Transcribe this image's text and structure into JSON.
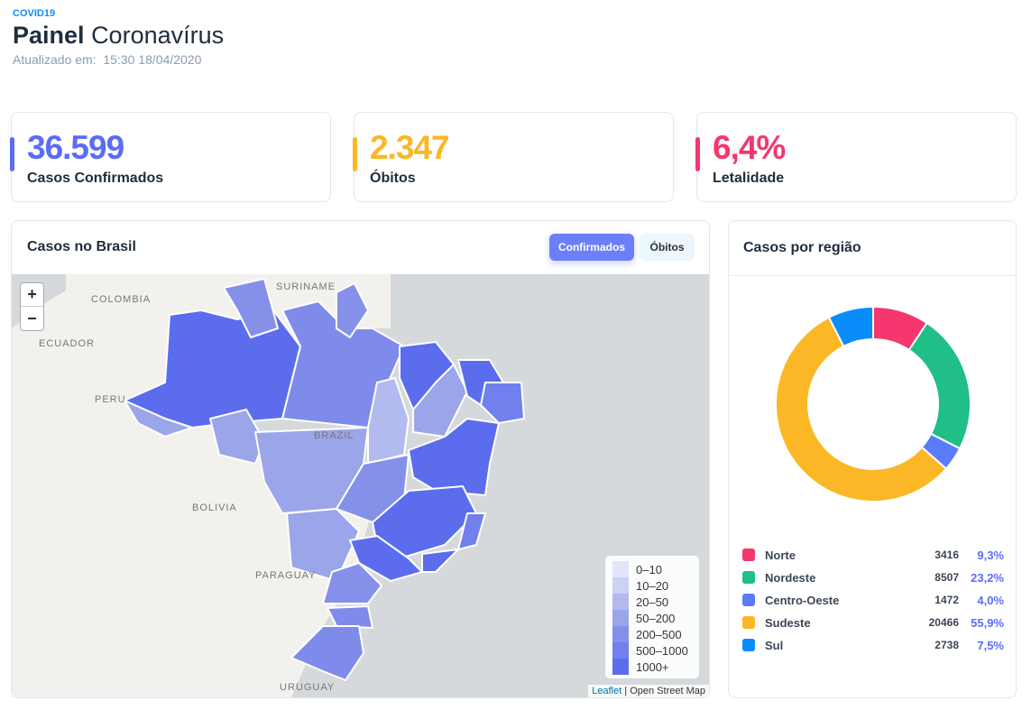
{
  "header": {
    "kicker": "COVID19",
    "title_bold": "Painel",
    "title_rest": "Coronavírus",
    "updated_label": "Atualizado em:",
    "updated_value": "15:30 18/04/2020"
  },
  "stats": [
    {
      "value": "36.599",
      "label": "Casos Confirmados",
      "color": "#5b6cfa"
    },
    {
      "value": "2.347",
      "label": "Óbitos",
      "color": "#fbb726"
    },
    {
      "value": "6,4%",
      "label": "Letalidade",
      "color": "#f5376e"
    }
  ],
  "map_panel": {
    "title": "Casos no Brasil",
    "tabs": [
      "Confirmados",
      "Óbitos"
    ],
    "active_tab": "Confirmados",
    "zoom_in": "+",
    "zoom_out": "−",
    "place_labels": [
      "COLOMBIA",
      "SURINAME",
      "ECUADOR",
      "PERU",
      "BRAZIL",
      "BOLIVIA",
      "PARAGUAY",
      "URUGUAY"
    ],
    "legend": [
      {
        "range": "0–10",
        "color": "#e3e6fb"
      },
      {
        "range": "10–20",
        "color": "#ccd1f5"
      },
      {
        "range": "20–50",
        "color": "#b3baef"
      },
      {
        "range": "50–200",
        "color": "#9ba5e9"
      },
      {
        "range": "200–500",
        "color": "#8590e9"
      },
      {
        "range": "500–1000",
        "color": "#7180ec"
      },
      {
        "range": "1000+",
        "color": "#5b6ded"
      }
    ],
    "attribution_link": "Leaflet",
    "attribution_text": " | Open Street Map"
  },
  "region_panel": {
    "title": "Casos por região",
    "regions": [
      {
        "name": "Norte",
        "count": "3416",
        "pct": "9,3%",
        "value": 9.3,
        "color": "#f5376e"
      },
      {
        "name": "Nordeste",
        "count": "8507",
        "pct": "23,2%",
        "value": 23.2,
        "color": "#1fbf87"
      },
      {
        "name": "Centro-Oeste",
        "count": "1472",
        "pct": "4,0%",
        "value": 4.0,
        "color": "#5b7cfa"
      },
      {
        "name": "Sudeste",
        "count": "20466",
        "pct": "55,9%",
        "value": 55.9,
        "color": "#fbb726"
      },
      {
        "name": "Sul",
        "count": "2738",
        "pct": "7,5%",
        "value": 7.5,
        "color": "#0a8cf9"
      }
    ]
  }
}
